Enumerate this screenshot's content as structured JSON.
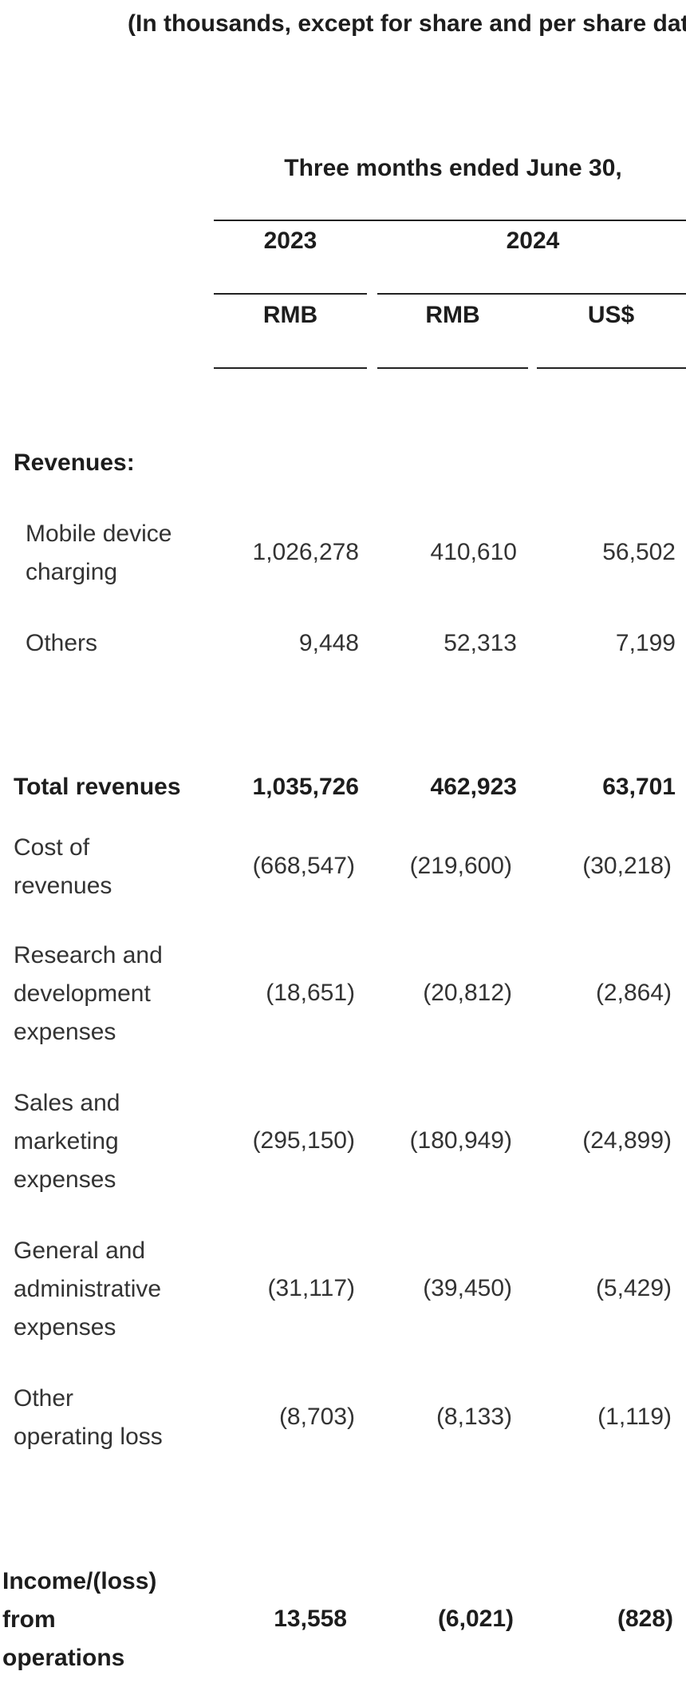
{
  "caption": "(In thousands, except for share and per share data)",
  "period_header": "Three months ended June 30,",
  "years": [
    "2023",
    "2024"
  ],
  "currencies": [
    "RMB",
    "RMB",
    "US$"
  ],
  "section_revenues": "Revenues:",
  "rows": [
    {
      "label": [
        "Mobile device",
        "charging"
      ],
      "values": [
        "1,026,278",
        "410,610",
        "56,502"
      ],
      "bold": false,
      "indent": true
    },
    {
      "label": [
        "Others"
      ],
      "values": [
        "9,448",
        "52,313",
        "7,199"
      ],
      "bold": false,
      "indent": true
    },
    {
      "label": [
        "Total revenues"
      ],
      "values": [
        "1,035,726",
        "462,923",
        "63,701"
      ],
      "bold": true,
      "indent": false
    },
    {
      "label": [
        "Cost of",
        "revenues"
      ],
      "values": [
        "(668,547)",
        "(219,600)",
        "(30,218)"
      ],
      "bold": false,
      "indent": false
    },
    {
      "label": [
        "Research and",
        "development",
        "expenses"
      ],
      "values": [
        "(18,651)",
        "(20,812)",
        "(2,864)"
      ],
      "bold": false,
      "indent": false
    },
    {
      "label": [
        "Sales and",
        "marketing",
        "expenses"
      ],
      "values": [
        "(295,150)",
        "(180,949)",
        "(24,899)"
      ],
      "bold": false,
      "indent": false
    },
    {
      "label": [
        "General and",
        "administrative",
        "expenses"
      ],
      "values": [
        "(31,117)",
        "(39,450)",
        "(5,429)"
      ],
      "bold": false,
      "indent": false
    },
    {
      "label": [
        "Other",
        "operating loss"
      ],
      "values": [
        "(8,703)",
        "(8,133)",
        "(1,119)"
      ],
      "bold": false,
      "indent": false
    },
    {
      "label": [
        "Income/(loss)",
        "from",
        "operations"
      ],
      "values": [
        "13,558",
        "(6,021)",
        "(828)"
      ],
      "bold": true,
      "indent": false
    }
  ]
}
